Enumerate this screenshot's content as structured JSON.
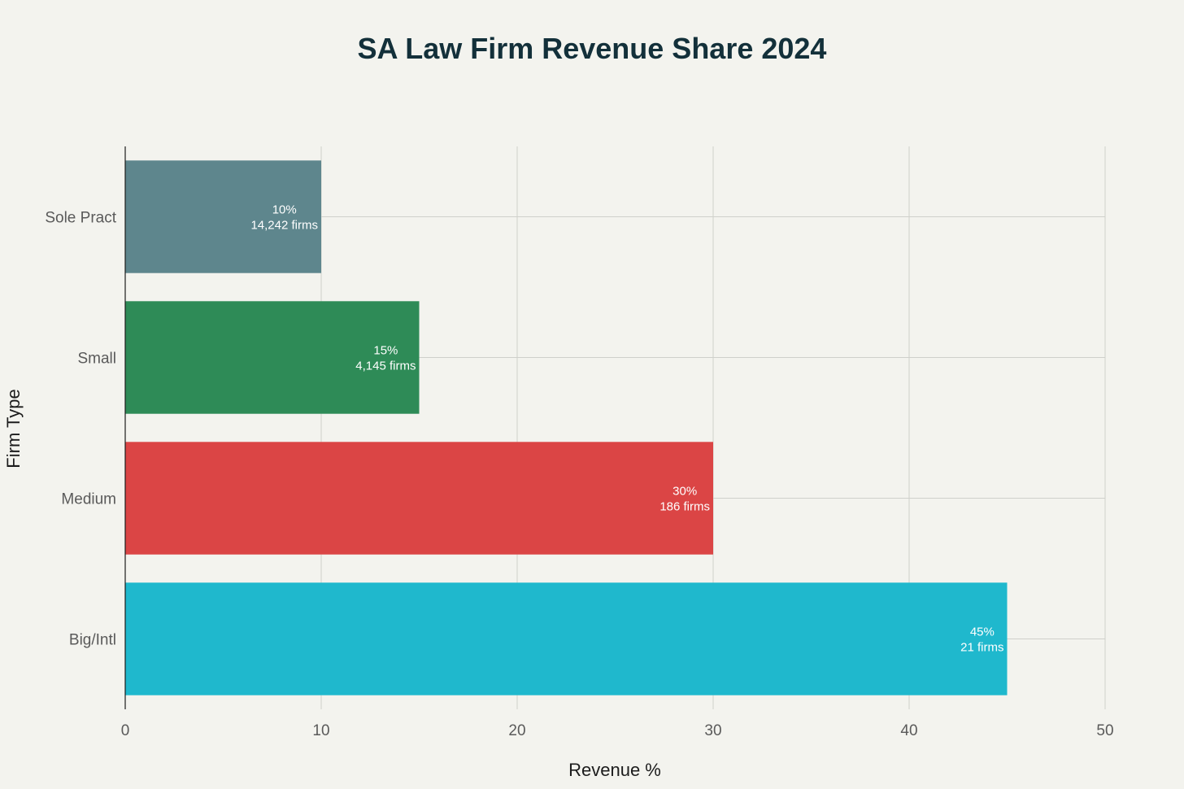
{
  "chart_data": {
    "type": "bar",
    "orientation": "horizontal",
    "title": "SA Law Firm Revenue Share 2024",
    "xlabel": "Revenue %",
    "ylabel": "Firm Type",
    "xlim": [
      0,
      50
    ],
    "x_ticks": [
      0,
      10,
      20,
      30,
      40,
      50
    ],
    "grid": true,
    "categories": [
      "Sole Pract",
      "Small",
      "Medium",
      "Big/Intl"
    ],
    "values": [
      10,
      15,
      30,
      45
    ],
    "data_labels": [
      [
        "10%",
        "14,242 firms"
      ],
      [
        "15%",
        "4,145 firms"
      ],
      [
        "30%",
        "186 firms"
      ],
      [
        "45%",
        "21 firms"
      ]
    ],
    "colors": [
      "#5e868d",
      "#2e8b57",
      "#db4545",
      "#1fb8cd"
    ]
  }
}
